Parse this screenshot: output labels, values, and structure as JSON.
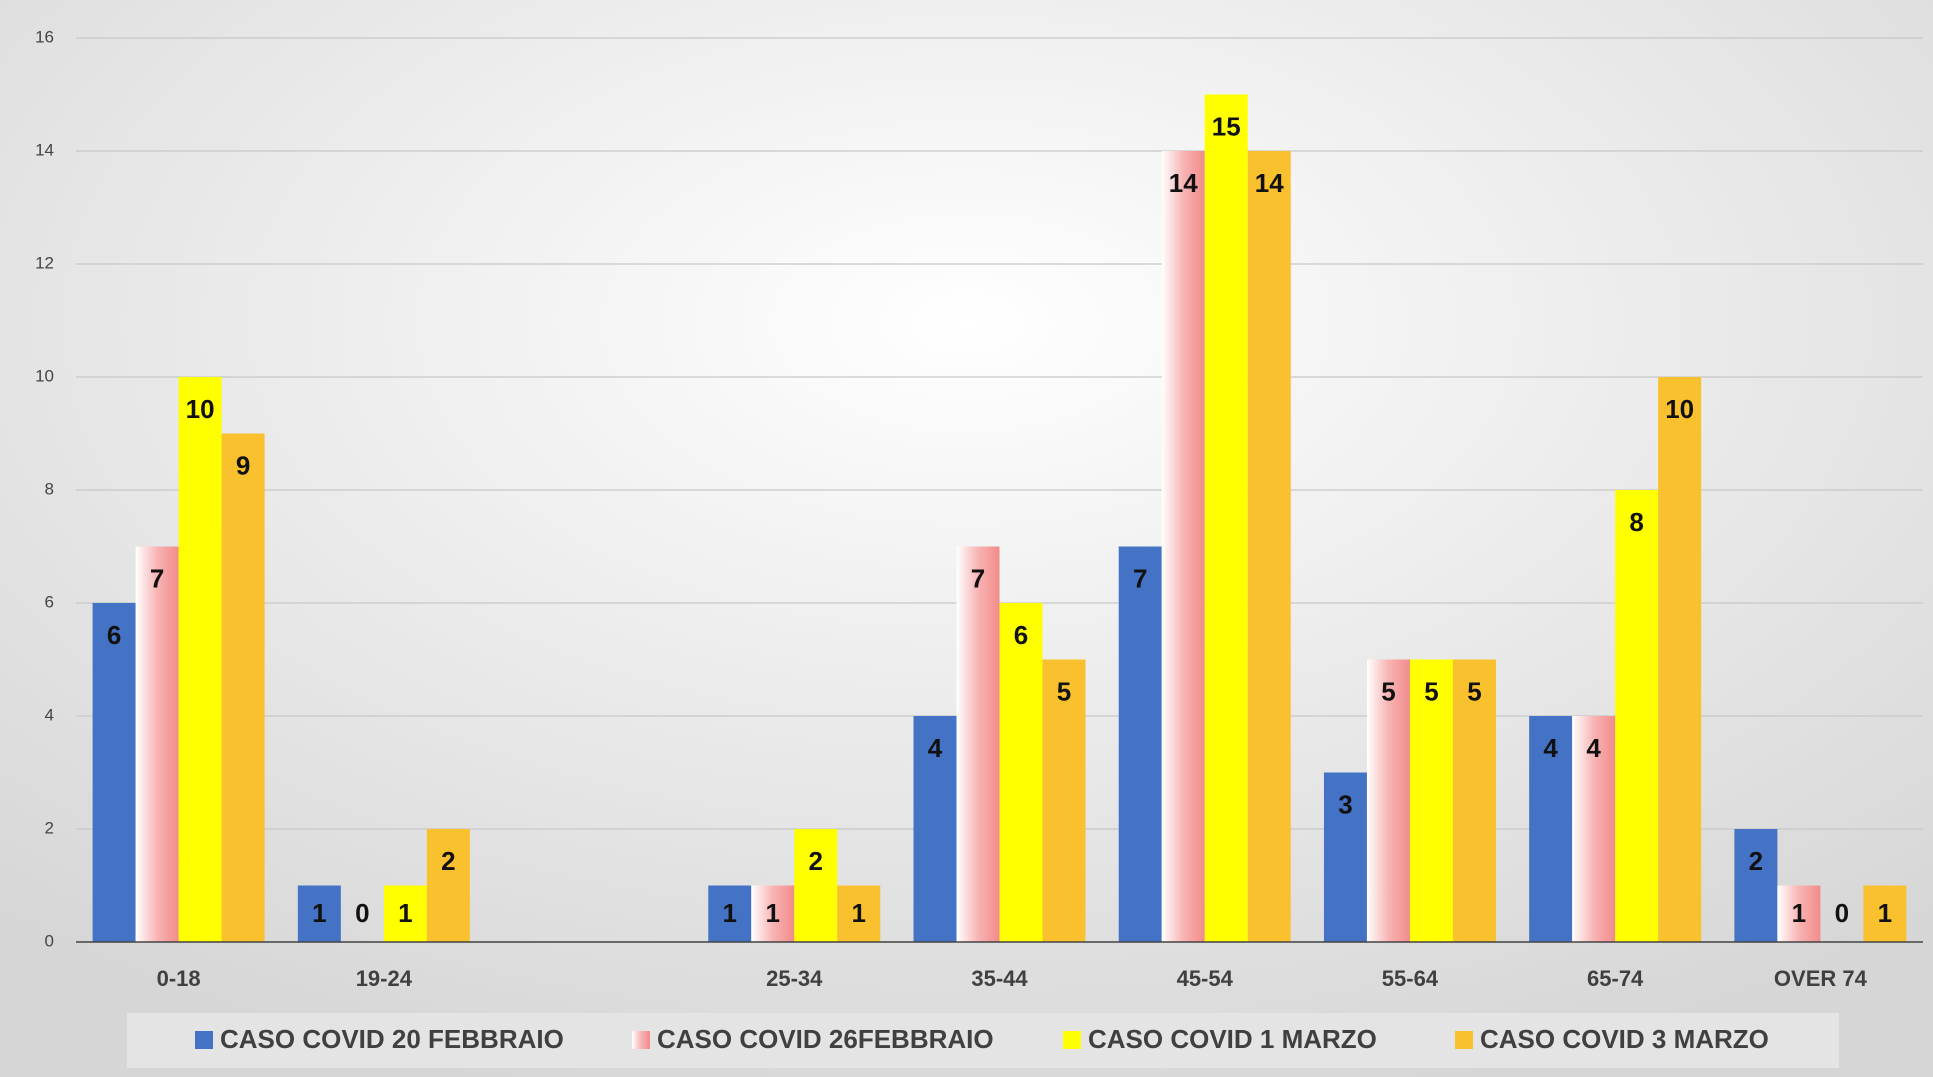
{
  "chart_data": {
    "type": "bar",
    "categories": [
      "0-18",
      "19-24",
      null,
      "25-34",
      "35-44",
      "45-54",
      "55-64",
      "65-74",
      "OVER 74"
    ],
    "series": [
      {
        "name": "CASO COVID 20 FEBBRAIO",
        "color": "#4472c4",
        "values": [
          6,
          1,
          null,
          1,
          4,
          7,
          3,
          4,
          2
        ]
      },
      {
        "name": "CASO COVID 26FEBBRAIO",
        "color": "#f7a3a3",
        "values": [
          7,
          0,
          null,
          1,
          7,
          14,
          5,
          4,
          1
        ]
      },
      {
        "name": "CASO COVID 1 MARZO",
        "color": "#ffff00",
        "values": [
          10,
          1,
          null,
          2,
          6,
          15,
          5,
          8,
          0
        ]
      },
      {
        "name": "CASO COVID 3 MARZO",
        "color": "#f9c12e",
        "values": [
          9,
          2,
          null,
          1,
          5,
          14,
          5,
          10,
          1
        ]
      }
    ],
    "ylim": [
      0,
      16
    ],
    "yticks": [
      0,
      2,
      4,
      6,
      8,
      10,
      12,
      14,
      16
    ],
    "grid": true,
    "legend": "bottom"
  }
}
